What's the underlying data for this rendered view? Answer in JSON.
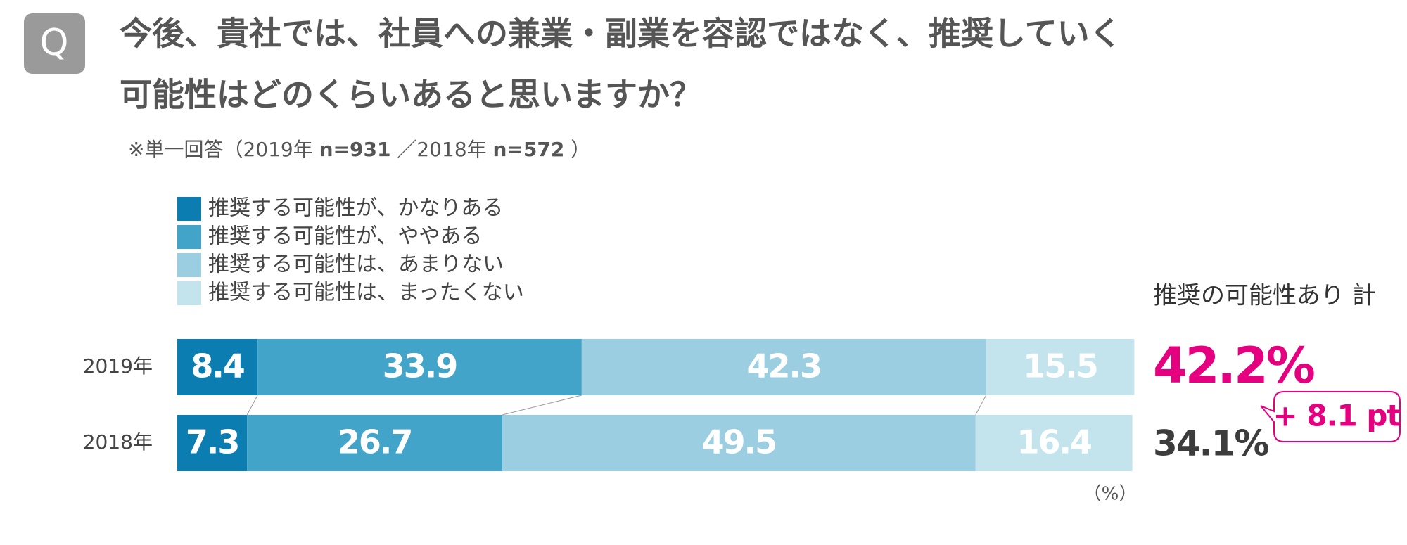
{
  "badge": "Q",
  "chart_data": {
    "type": "stacked-bar-h",
    "title": [
      "今後、貴社では、社員への兼業・副業を容認ではなく、推奨していく",
      "可能性はどのくらいあると思いますか？"
    ],
    "subtitle": [
      "※単一回答（2019年 ",
      "n=931",
      " ／2018年 ",
      "n=572",
      " ）"
    ],
    "categories": [
      "2019年",
      "2018年"
    ],
    "series": [
      {
        "name": "推奨する可能性が、かなりある",
        "color": "#0b7db0",
        "values": [
          8.4,
          7.3
        ]
      },
      {
        "name": "推奨する可能性が、ややある",
        "color": "#42a4c9",
        "values": [
          33.9,
          26.7
        ]
      },
      {
        "name": "推奨する可能性は、あまりない",
        "color": "#9bcee0",
        "values": [
          42.3,
          49.5
        ]
      },
      {
        "name": "推奨する可能性は、まったくない",
        "color": "#c3e3ed",
        "values": [
          15.5,
          16.4
        ]
      }
    ],
    "xlim": [
      0,
      100
    ],
    "unit": "（%）",
    "totals": {
      "title": "推奨の可能性あり 計",
      "values": [
        42.2,
        34.1
      ],
      "value_labels": [
        "42.2%",
        "34.1%"
      ],
      "colors": [
        "#e4007f",
        "#3c3c3c"
      ]
    },
    "difference": {
      "value": 8.1,
      "label": "+ 8.1 pt",
      "color": "#e4007f"
    }
  }
}
